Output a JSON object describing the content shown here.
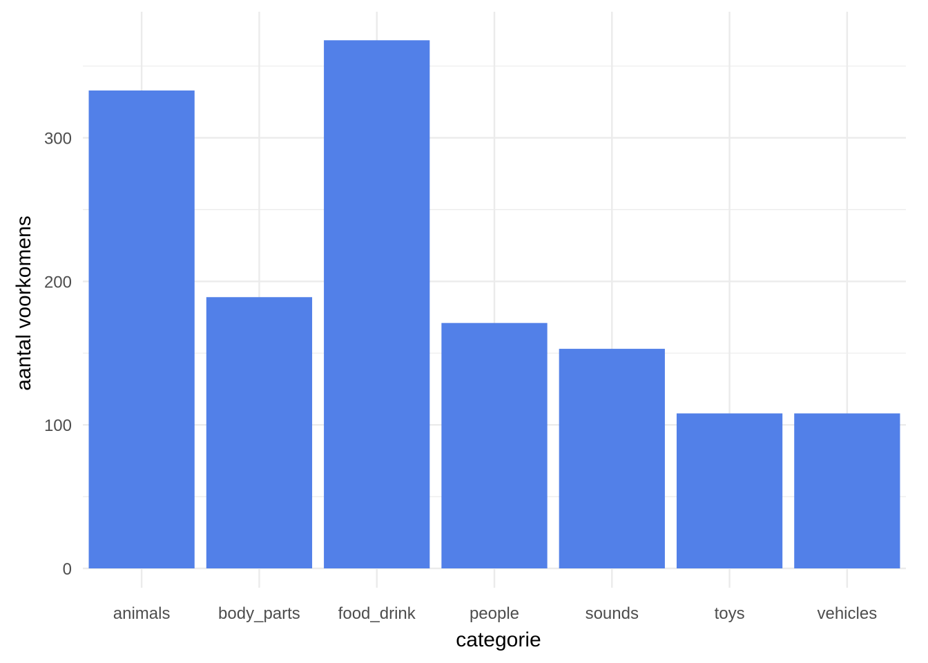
{
  "chart_data": {
    "type": "bar",
    "title": "",
    "xlabel": "categorie",
    "ylabel": "aantal voorkomens",
    "categories": [
      "animals",
      "body_parts",
      "food_drink",
      "people",
      "sounds",
      "toys",
      "vehicles"
    ],
    "values": [
      333,
      189,
      368,
      171,
      153,
      108,
      108
    ],
    "ylim": [
      0,
      387
    ],
    "yticks": [
      0,
      100,
      200,
      300
    ],
    "ytick_labels": [
      "0",
      "100",
      "200",
      "300"
    ],
    "grid": true,
    "legend": "none",
    "bar_color": "#5280E8"
  }
}
